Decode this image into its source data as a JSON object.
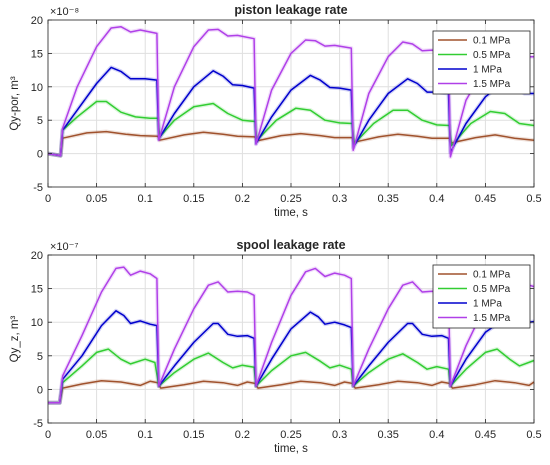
{
  "chart_data": [
    {
      "type": "line",
      "title": "piston leakage rate",
      "xlabel": "time, s",
      "ylabel": "Qy-por, m³",
      "y_exponent_label": "×10⁻⁸",
      "xlim": [
        0,
        0.5
      ],
      "ylim": [
        -5,
        20
      ],
      "xticks": [
        0,
        0.05,
        0.1,
        0.15,
        0.2,
        0.25,
        0.3,
        0.35,
        0.4,
        0.45,
        0.5
      ],
      "xtick_labels": [
        "0",
        "0.05",
        "0.1",
        "0.15",
        "0.2",
        "0.25",
        "0.3",
        "0.35",
        "0.4",
        "0.45",
        "0.5"
      ],
      "yticks": [
        -5,
        0,
        5,
        10,
        15,
        20
      ],
      "ytick_labels": [
        "-5",
        "0",
        "5",
        "10",
        "15",
        "20"
      ],
      "grid": true,
      "legend_position": "top-right",
      "series": [
        {
          "name": "0.1 MPa",
          "color": "#a0522d",
          "x": [
            0,
            0.013,
            0.015,
            0.04,
            0.06,
            0.08,
            0.095,
            0.113,
            0.115,
            0.14,
            0.16,
            0.18,
            0.195,
            0.213,
            0.215,
            0.24,
            0.26,
            0.28,
            0.295,
            0.313,
            0.315,
            0.34,
            0.36,
            0.38,
            0.395,
            0.413,
            0.415,
            0.44,
            0.46,
            0.48,
            0.5
          ],
          "y": [
            0,
            -0.3,
            2.3,
            3.1,
            3.3,
            2.9,
            2.7,
            2.6,
            2.0,
            2.8,
            3.2,
            2.9,
            2.6,
            2.5,
            1.9,
            2.7,
            3.0,
            2.7,
            2.4,
            2.4,
            1.7,
            2.5,
            2.9,
            2.6,
            2.3,
            2.3,
            1.6,
            2.4,
            2.8,
            2.3,
            2.0
          ]
        },
        {
          "name": "0.5 MPa",
          "color": "#32cd32",
          "x": [
            0,
            0.013,
            0.015,
            0.03,
            0.05,
            0.06,
            0.075,
            0.09,
            0.105,
            0.113,
            0.115,
            0.13,
            0.15,
            0.17,
            0.185,
            0.2,
            0.213,
            0.215,
            0.235,
            0.255,
            0.27,
            0.285,
            0.3,
            0.313,
            0.315,
            0.335,
            0.355,
            0.37,
            0.385,
            0.4,
            0.413,
            0.415,
            0.435,
            0.455,
            0.47,
            0.485,
            0.5
          ],
          "y": [
            0,
            -0.3,
            3.5,
            5.5,
            7.8,
            7.8,
            6.2,
            5.5,
            5.3,
            5.3,
            2.5,
            5.0,
            7.0,
            7.5,
            6.0,
            5.0,
            4.8,
            2.0,
            5.0,
            6.8,
            6.5,
            5.0,
            4.6,
            4.5,
            1.5,
            4.5,
            6.5,
            6.5,
            5.0,
            4.3,
            4.2,
            1.2,
            4.5,
            6.3,
            6.0,
            4.5,
            4.2
          ]
        },
        {
          "name": "1 MPa",
          "color": "#0000cd",
          "x": [
            0,
            0.013,
            0.015,
            0.03,
            0.05,
            0.065,
            0.075,
            0.085,
            0.1,
            0.112,
            0.114,
            0.13,
            0.15,
            0.17,
            0.18,
            0.19,
            0.2,
            0.212,
            0.214,
            0.23,
            0.25,
            0.27,
            0.28,
            0.29,
            0.3,
            0.312,
            0.314,
            0.33,
            0.35,
            0.37,
            0.38,
            0.39,
            0.4,
            0.412,
            0.414,
            0.43,
            0.45,
            0.47,
            0.48,
            0.49,
            0.5
          ],
          "y": [
            0,
            -0.3,
            3.5,
            6.5,
            10.5,
            12.9,
            12.3,
            11.2,
            11.2,
            11.0,
            2.2,
            6.0,
            10.0,
            12.4,
            11.6,
            10.3,
            10.2,
            9.8,
            1.5,
            5.5,
            9.5,
            11.7,
            11.0,
            9.9,
            9.8,
            9.5,
            0.9,
            5.0,
            9.0,
            11.2,
            10.5,
            9.2,
            9.2,
            9.0,
            0.2,
            4.5,
            8.5,
            10.8,
            10.0,
            9.0,
            9.0
          ]
        },
        {
          "name": "1.5 MPa",
          "color": "#b040e8",
          "x": [
            0,
            0.013,
            0.015,
            0.03,
            0.05,
            0.065,
            0.075,
            0.085,
            0.095,
            0.112,
            0.114,
            0.13,
            0.15,
            0.165,
            0.175,
            0.185,
            0.195,
            0.212,
            0.214,
            0.23,
            0.25,
            0.265,
            0.275,
            0.285,
            0.295,
            0.312,
            0.314,
            0.33,
            0.35,
            0.365,
            0.375,
            0.385,
            0.395,
            0.412,
            0.414,
            0.43,
            0.45,
            0.465,
            0.475,
            0.485,
            0.5
          ],
          "y": [
            0,
            -0.3,
            3.8,
            10.0,
            16.0,
            18.8,
            19.0,
            18.2,
            18.5,
            18.0,
            2.0,
            10.0,
            16.0,
            18.5,
            18.6,
            17.6,
            17.7,
            17.2,
            1.4,
            9.5,
            15.0,
            17.0,
            16.9,
            16.1,
            16.2,
            15.8,
            0.5,
            9.0,
            14.5,
            16.7,
            16.4,
            15.4,
            15.5,
            15.1,
            -0.5,
            8.0,
            13.0,
            15.5,
            15.3,
            14.5,
            14.5
          ]
        }
      ]
    },
    {
      "type": "line",
      "title": "spool leakage rate",
      "xlabel": "time, s",
      "ylabel": "Qy_z, m³",
      "y_exponent_label": "×10⁻⁷",
      "xlim": [
        0,
        0.5
      ],
      "ylim": [
        -5,
        20
      ],
      "xticks": [
        0,
        0.05,
        0.1,
        0.15,
        0.2,
        0.25,
        0.3,
        0.35,
        0.4,
        0.45,
        0.5
      ],
      "xtick_labels": [
        "0",
        "0.05",
        "0.1",
        "0.15",
        "0.2",
        "0.25",
        "0.3",
        "0.35",
        "0.4",
        "0.45",
        "0.5"
      ],
      "yticks": [
        -5,
        0,
        5,
        10,
        15,
        20
      ],
      "ytick_labels": [
        "-5",
        "0",
        "5",
        "10",
        "15",
        "20"
      ],
      "grid": true,
      "legend_position": "top-right",
      "series": [
        {
          "name": "0.1 MPa",
          "color": "#a0522d",
          "x": [
            0,
            0.012,
            0.015,
            0.035,
            0.055,
            0.075,
            0.095,
            0.105,
            0.113,
            0.116,
            0.14,
            0.16,
            0.18,
            0.195,
            0.205,
            0.213,
            0.216,
            0.24,
            0.26,
            0.28,
            0.295,
            0.305,
            0.313,
            0.316,
            0.34,
            0.36,
            0.38,
            0.395,
            0.405,
            0.413,
            0.416,
            0.44,
            0.46,
            0.48,
            0.495,
            0.5
          ],
          "y": [
            -2,
            -2,
            0.2,
            0.8,
            1.3,
            1.1,
            0.6,
            1.2,
            1.0,
            0.2,
            0.7,
            1.2,
            1.0,
            0.6,
            1.1,
            0.9,
            0.2,
            0.7,
            1.2,
            1.0,
            0.6,
            1.1,
            0.9,
            0.2,
            0.7,
            1.2,
            1.0,
            0.6,
            1.1,
            0.9,
            0.2,
            0.7,
            1.3,
            1.0,
            0.6,
            1.1
          ]
        },
        {
          "name": "0.5 MPa",
          "color": "#32cd32",
          "x": [
            0,
            0.012,
            0.015,
            0.035,
            0.05,
            0.062,
            0.075,
            0.085,
            0.1,
            0.11,
            0.114,
            0.13,
            0.15,
            0.165,
            0.18,
            0.19,
            0.2,
            0.212,
            0.214,
            0.23,
            0.25,
            0.265,
            0.28,
            0.29,
            0.3,
            0.312,
            0.314,
            0.33,
            0.35,
            0.365,
            0.38,
            0.39,
            0.4,
            0.412,
            0.414,
            0.43,
            0.45,
            0.462,
            0.475,
            0.485,
            0.5
          ],
          "y": [
            -2,
            -2,
            1.0,
            3.5,
            5.5,
            6.0,
            4.5,
            3.8,
            4.5,
            4.0,
            0.5,
            2.5,
            4.5,
            5.4,
            4.0,
            3.2,
            3.6,
            3.3,
            0.5,
            2.8,
            5.0,
            5.5,
            4.2,
            3.2,
            3.6,
            3.0,
            0.5,
            2.5,
            4.5,
            5.3,
            4.0,
            3.0,
            3.4,
            3.0,
            0.5,
            3.0,
            5.5,
            6.0,
            4.5,
            3.5,
            4.3
          ]
        },
        {
          "name": "1 MPa",
          "color": "#0000cd",
          "x": [
            0,
            0.012,
            0.015,
            0.035,
            0.055,
            0.07,
            0.078,
            0.085,
            0.095,
            0.105,
            0.112,
            0.114,
            0.13,
            0.15,
            0.17,
            0.175,
            0.185,
            0.195,
            0.205,
            0.212,
            0.214,
            0.23,
            0.25,
            0.27,
            0.278,
            0.285,
            0.295,
            0.305,
            0.312,
            0.314,
            0.33,
            0.35,
            0.37,
            0.375,
            0.385,
            0.395,
            0.405,
            0.412,
            0.414,
            0.43,
            0.45,
            0.47,
            0.478,
            0.485,
            0.495,
            0.5
          ],
          "y": [
            -2,
            -2,
            1.5,
            5.0,
            9.5,
            11.7,
            11.0,
            9.8,
            10.2,
            9.7,
            9.5,
            0.5,
            3.5,
            7.0,
            9.8,
            9.8,
            8.2,
            7.9,
            8.0,
            7.6,
            0.5,
            4.5,
            9.0,
            11.5,
            10.8,
            9.7,
            10.0,
            9.6,
            9.2,
            0.5,
            3.5,
            7.0,
            9.8,
            9.8,
            8.2,
            7.9,
            8.0,
            7.6,
            0.5,
            4.5,
            8.5,
            10.5,
            9.9,
            9.6,
            10.0,
            10.1
          ]
        },
        {
          "name": "1.5 MPa",
          "color": "#b040e8",
          "x": [
            0,
            0.012,
            0.015,
            0.035,
            0.055,
            0.07,
            0.078,
            0.085,
            0.095,
            0.105,
            0.112,
            0.114,
            0.13,
            0.15,
            0.165,
            0.175,
            0.185,
            0.195,
            0.205,
            0.212,
            0.214,
            0.23,
            0.25,
            0.265,
            0.275,
            0.285,
            0.295,
            0.305,
            0.312,
            0.314,
            0.33,
            0.35,
            0.365,
            0.375,
            0.385,
            0.395,
            0.405,
            0.412,
            0.414,
            0.43,
            0.45,
            0.465,
            0.475,
            0.485,
            0.495,
            0.5
          ],
          "y": [
            -2,
            -2,
            2.0,
            8.0,
            14.5,
            18.0,
            18.2,
            17.0,
            17.6,
            17.2,
            16.5,
            0.5,
            6.0,
            12.0,
            15.5,
            16.0,
            14.5,
            14.6,
            14.5,
            14.0,
            0.5,
            7.0,
            14.0,
            17.5,
            18.0,
            16.8,
            17.3,
            17.0,
            16.5,
            0.5,
            6.0,
            12.0,
            15.5,
            16.0,
            14.5,
            14.6,
            14.5,
            14.0,
            0.5,
            6.5,
            12.5,
            15.8,
            16.2,
            15.0,
            15.5,
            15.3
          ]
        }
      ]
    }
  ]
}
